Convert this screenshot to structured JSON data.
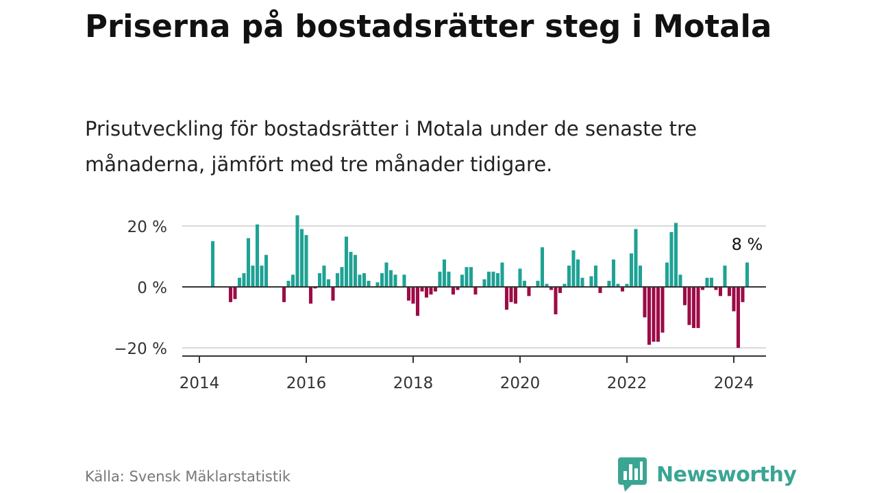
{
  "header": {
    "title": "Priserna på bostadsrätter steg i Motala",
    "subtitle": "Prisutveckling för bostadsrätter i Motala under de senaste tre månaderna, jämfört med tre månader tidigare."
  },
  "footer": {
    "source": "Källa: Svensk Mäklarstatistik",
    "brand": "Newsworthy"
  },
  "colors": {
    "positive": "#1fa295",
    "negative": "#9c0c46",
    "brand": "#3aa592"
  },
  "chart_data": {
    "type": "bar",
    "title": "Priserna på bostadsrätter steg i Motala",
    "xlabel": "",
    "ylabel": "",
    "unit": "%",
    "ylim": [
      -22,
      24
    ],
    "y_ticks": [
      20,
      0,
      -20
    ],
    "y_tick_labels": [
      "20 %",
      "0 %",
      "−20 %"
    ],
    "x_ticks": [
      2014,
      2016,
      2018,
      2020,
      2022,
      2024
    ],
    "x_tick_labels": [
      "2014",
      "2016",
      "2018",
      "2020",
      "2022",
      "2024"
    ],
    "annotation": "8 %",
    "x_start": 2014.25,
    "x_step": 0.08333,
    "values": [
      15,
      0,
      0,
      0,
      -5,
      -4,
      3,
      4.5,
      16,
      7,
      20.5,
      7,
      10.5,
      0,
      0,
      0,
      -5,
      2,
      4,
      23.5,
      19,
      17,
      -5.5,
      -0.5,
      4.5,
      7,
      2.5,
      -4.5,
      4.5,
      6.5,
      16.5,
      11.5,
      10.5,
      4,
      4.5,
      2,
      0,
      1.5,
      4.5,
      8,
      5.5,
      4,
      0,
      4,
      -4.5,
      -5.5,
      -9.5,
      -1.5,
      -3.5,
      -2.5,
      -1.5,
      5,
      9,
      5,
      -2.5,
      -1,
      4,
      6.5,
      6.5,
      -2.5,
      0,
      2.5,
      5,
      5,
      4.5,
      8,
      -7.5,
      -5,
      -5.5,
      6,
      2,
      -3,
      0,
      2,
      13,
      1,
      -1,
      -9,
      -2,
      1,
      7,
      12,
      9,
      3,
      0,
      3.5,
      7,
      -2,
      0,
      2,
      9,
      1,
      -1.5,
      1,
      11,
      19,
      7,
      -10,
      -19,
      -18,
      -18,
      -15,
      8,
      18,
      21,
      4,
      -6,
      -12.5,
      -13.5,
      -13.5,
      -1,
      3,
      3,
      -1,
      -3,
      7,
      -3,
      -8,
      -20,
      -5,
      8
    ]
  }
}
